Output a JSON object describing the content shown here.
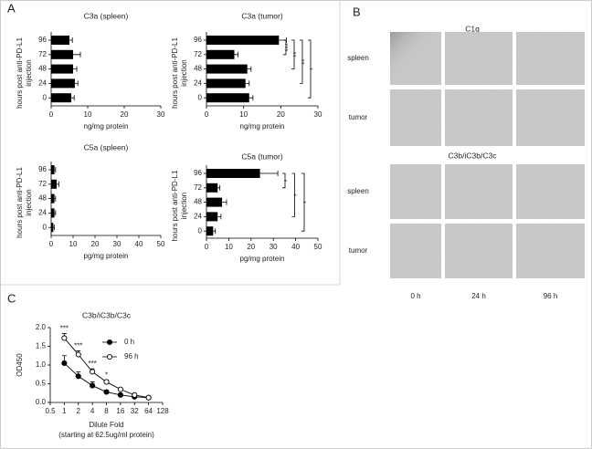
{
  "panel_labels": {
    "a": "A",
    "b": "B",
    "c": "C"
  },
  "panel_b": {
    "columns": [
      "0 h",
      "24 h",
      "96 h"
    ],
    "sections": [
      {
        "title": "C1q",
        "rows": [
          "spleen",
          "tumor"
        ]
      },
      {
        "title": "C3b/iC3b/C3c",
        "rows": [
          "spleen",
          "tumor"
        ]
      }
    ]
  },
  "chart_data": [
    {
      "type": "hbar",
      "title": "C3a (spleen)",
      "xlabel": "ng/mg protein",
      "ylabel_lines": [
        "hours post anti-PD-L1",
        "injection"
      ],
      "categories": [
        "96",
        "72",
        "48",
        "24",
        "0"
      ],
      "values": [
        5,
        6,
        6,
        6.5,
        5.5
      ],
      "errors": [
        0.8,
        2,
        1,
        0.8,
        0.8
      ],
      "color": "#000000",
      "xlim": [
        0,
        30
      ],
      "xticks": [
        0,
        10,
        20,
        30
      ]
    },
    {
      "type": "hbar",
      "title": "C3a (tumor)",
      "xlabel": "ng/mg protein",
      "ylabel_lines": [
        "hours post anti-PD-L1",
        "injection"
      ],
      "categories": [
        "96",
        "72",
        "48",
        "24",
        "0"
      ],
      "values": [
        19.5,
        7.5,
        11,
        10.5,
        11.5
      ],
      "errors": [
        2,
        1,
        1,
        1,
        1
      ],
      "color": "#000000",
      "xlim": [
        0,
        30
      ],
      "xticks": [
        0,
        10,
        20,
        30
      ],
      "annotations": [
        {
          "text": "***",
          "between": [
            "96",
            "72"
          ]
        },
        {
          "text": "**",
          "between": [
            "96",
            "48"
          ]
        },
        {
          "text": "**",
          "between": [
            "96",
            "24"
          ]
        },
        {
          "text": "*",
          "between": [
            "96",
            "0"
          ]
        }
      ]
    },
    {
      "type": "hbar",
      "title": "C5a (spleen)",
      "xlabel": "pg/mg protein",
      "ylabel_lines": [
        "hours post anti-PD-L1",
        "injection"
      ],
      "categories": [
        "96",
        "72",
        "48",
        "24",
        "0"
      ],
      "values": [
        1.5,
        2.5,
        1.5,
        1.5,
        1
      ],
      "errors": [
        0.5,
        1,
        0.5,
        0.5,
        0.4
      ],
      "color": "#000000",
      "xlim": [
        0,
        50
      ],
      "xticks": [
        0,
        10,
        20,
        30,
        40,
        50
      ]
    },
    {
      "type": "hbar",
      "title": "C5a (tumor)",
      "xlabel": "pg/mg protein",
      "ylabel_lines": [
        "hours post anti-PD-L1",
        "injection"
      ],
      "categories": [
        "96",
        "72",
        "48",
        "24",
        "0"
      ],
      "values": [
        24,
        5,
        7,
        5,
        3
      ],
      "errors": [
        8,
        1,
        2,
        1.5,
        1
      ],
      "color": "#000000",
      "xlim": [
        0,
        50
      ],
      "xticks": [
        0,
        10,
        20,
        30,
        40,
        50
      ],
      "annotations": [
        {
          "text": "*",
          "between": [
            "96",
            "72"
          ]
        },
        {
          "text": "*",
          "between": [
            "96",
            "24"
          ]
        },
        {
          "text": "*",
          "between": [
            "96",
            "0"
          ]
        }
      ]
    },
    {
      "type": "line",
      "title": "C3b/iC3b/C3c",
      "xlabel": "Dilute Fold",
      "xlabel_note": "(starting at 62.5ug/ml protein)",
      "ylabel": "OD450",
      "xscale": "log2",
      "x": [
        1,
        2,
        4,
        8,
        16,
        32,
        64
      ],
      "series": [
        {
          "name": "0 h",
          "color": "#000000",
          "fill": "#000000",
          "values": [
            1.05,
            0.7,
            0.45,
            0.28,
            0.2,
            0.15,
            0.13
          ],
          "errors": [
            0.2,
            0.12,
            0.1,
            0.05,
            0.03,
            0.02,
            0.02
          ]
        },
        {
          "name": "96 h",
          "color": "#000000",
          "fill": "#ffffff",
          "values": [
            1.72,
            1.28,
            0.82,
            0.55,
            0.35,
            0.2,
            0.13
          ],
          "errors": [
            0.12,
            0.1,
            0.08,
            0.05,
            0.04,
            0.03,
            0.02
          ]
        }
      ],
      "xlim": [
        0.5,
        128
      ],
      "xticks": [
        0.5,
        1,
        2,
        4,
        8,
        16,
        32,
        64,
        128
      ],
      "ylim": [
        0,
        2
      ],
      "yticks": [
        {
          "value": 0,
          "label": "0.0"
        },
        0.5,
        {
          "value": 1,
          "label": "1.0"
        },
        1.5,
        {
          "value": 2,
          "label": "2.0"
        }
      ],
      "annotations": [
        {
          "text": "***",
          "x": 1
        },
        {
          "text": "***",
          "x": 2
        },
        {
          "text": "***",
          "x": 4
        },
        {
          "text": "*",
          "x": 8
        }
      ]
    }
  ]
}
